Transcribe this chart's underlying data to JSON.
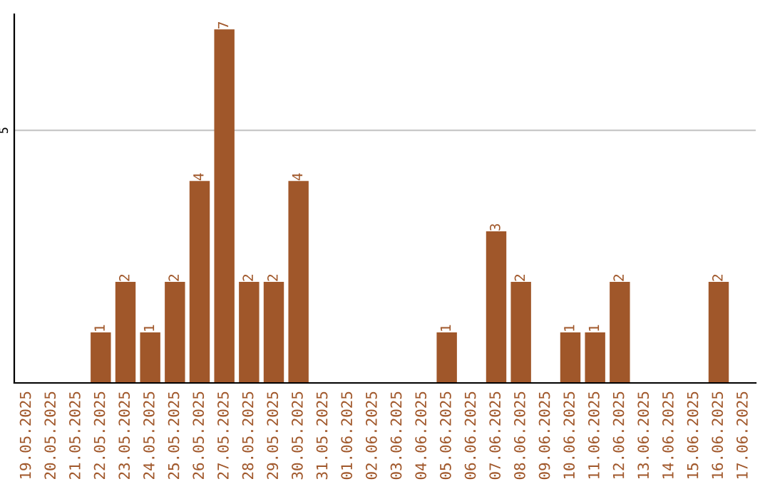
{
  "chart_data": {
    "type": "bar",
    "categories": [
      "19.05.2025",
      "20.05.2025",
      "21.05.2025",
      "22.05.2025",
      "23.05.2025",
      "24.05.2025",
      "25.05.2025",
      "26.05.2025",
      "27.05.2025",
      "28.05.2025",
      "29.05.2025",
      "30.05.2025",
      "31.05.2025",
      "01.06.2025",
      "02.06.2025",
      "03.06.2025",
      "04.06.2025",
      "05.06.2025",
      "06.06.2025",
      "07.06.2025",
      "08.06.2025",
      "09.06.2025",
      "10.06.2025",
      "11.06.2025",
      "12.06.2025",
      "13.06.2025",
      "14.06.2025",
      "15.06.2025",
      "16.06.2025",
      "17.06.2025"
    ],
    "values": [
      0,
      0,
      0,
      1,
      2,
      1,
      2,
      4,
      7,
      2,
      2,
      4,
      0,
      0,
      0,
      0,
      0,
      1,
      0,
      3,
      2,
      0,
      1,
      1,
      2,
      0,
      0,
      0,
      2,
      0
    ],
    "value_labels": [
      null,
      null,
      null,
      "1",
      "2",
      "1",
      "2",
      "4",
      "7",
      "2",
      "2",
      "4",
      null,
      null,
      null,
      null,
      null,
      "1",
      null,
      "3",
      "2",
      null,
      "1",
      "1",
      "2",
      null,
      null,
      null,
      "2",
      null
    ],
    "color": "#a0572a",
    "ylim": [
      0,
      7.3
    ],
    "yticks": [
      5
    ],
    "grid": "y"
  }
}
